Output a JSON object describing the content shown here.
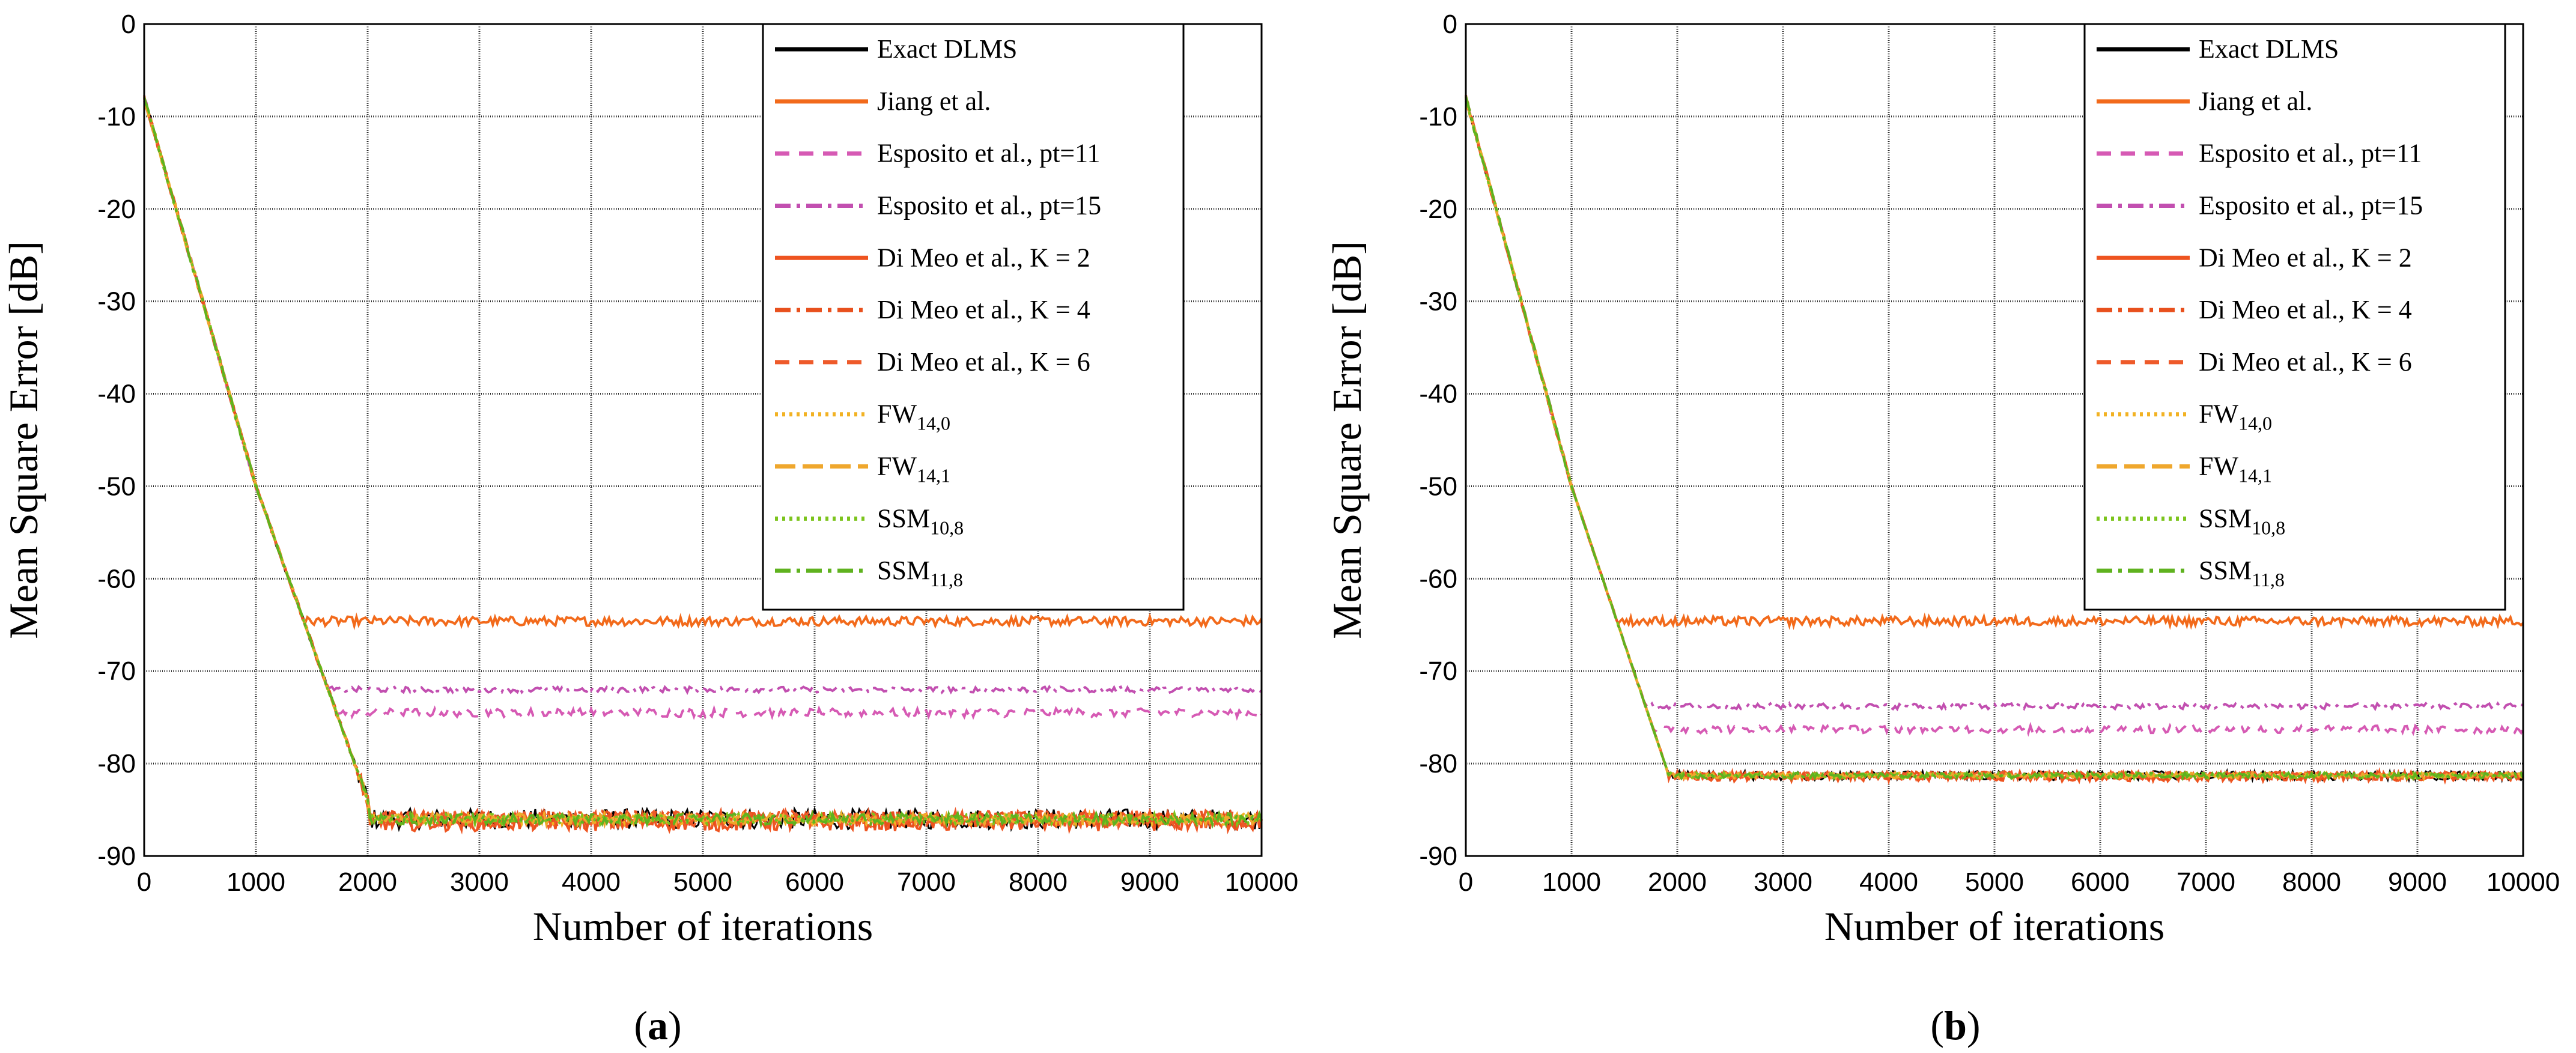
{
  "colors": {
    "exact": "#000000",
    "jiang": "#f26a1b",
    "esposito11": "#d65ab4",
    "esposito15": "#c24fb0",
    "dimeo2": "#ee5420",
    "dimeo4": "#e8501d",
    "dimeo6": "#ee5a2a",
    "fw140": "#f2b223",
    "fw141": "#efa72d",
    "ssm108": "#7cc41d",
    "ssm118": "#5fb21f"
  },
  "chart_data": [
    {
      "type": "line",
      "panel_label": "a",
      "title": "",
      "xlabel": "Number of iterations",
      "ylabel": "Mean Square Error [dB]",
      "xlim": [
        0,
        10000
      ],
      "ylim": [
        -90,
        0
      ],
      "x_ticks": [
        "0",
        "1000",
        "2000",
        "3000",
        "4000",
        "5000",
        "6000",
        "7000",
        "8000",
        "9000",
        "10000"
      ],
      "y_ticks": [
        "0",
        "-10",
        "-20",
        "-30",
        "-40",
        "-50",
        "-60",
        "-70",
        "-80",
        "-90"
      ],
      "grid": true,
      "legend_position": "top-right",
      "series": [
        {
          "key": "exact",
          "name": "Exact DLMS",
          "sub": "",
          "style": "solid",
          "floor": -86.0,
          "knee": 2000,
          "noise": 1.1
        },
        {
          "key": "jiang",
          "name": "Jiang et al.",
          "sub": "",
          "style": "solid",
          "floor": -64.6,
          "knee": 1500,
          "noise": 0.5
        },
        {
          "key": "esposito11",
          "name": "Esposito et al., pt=11",
          "sub": "",
          "style": "dashed",
          "floor": -74.5,
          "knee": 1850,
          "noise": 0.45
        },
        {
          "key": "esposito15",
          "name": "Esposito et al., pt=15",
          "sub": "",
          "style": "dashdot",
          "floor": -72.0,
          "knee": 1700,
          "noise": 0.3
        },
        {
          "key": "dimeo2",
          "name": "Di Meo et al., K = 2",
          "sub": "",
          "style": "solid",
          "floor": -86.3,
          "knee": 2000,
          "noise": 1.0
        },
        {
          "key": "dimeo4",
          "name": "Di Meo et al., K = 4",
          "sub": "",
          "style": "dashdot",
          "floor": -86.0,
          "knee": 2000,
          "noise": 0.9
        },
        {
          "key": "dimeo6",
          "name": "Di Meo et al., K = 6",
          "sub": "",
          "style": "dashed",
          "floor": -86.0,
          "knee": 2000,
          "noise": 0.9
        },
        {
          "key": "fw140",
          "name": "FW",
          "sub": "14,0",
          "style": "dotted",
          "floor": -86.0,
          "knee": 2000,
          "noise": 0.6
        },
        {
          "key": "fw141",
          "name": "FW",
          "sub": "14,1",
          "style": "longdash",
          "floor": -86.0,
          "knee": 2000,
          "noise": 0.6
        },
        {
          "key": "ssm108",
          "name": "SSM",
          "sub": "10,8",
          "style": "dotted",
          "floor": -86.0,
          "knee": 2000,
          "noise": 0.6
        },
        {
          "key": "ssm118",
          "name": "SSM",
          "sub": "11,8",
          "style": "dashdot",
          "floor": -86.0,
          "knee": 2000,
          "noise": 0.6
        }
      ]
    },
    {
      "type": "line",
      "panel_label": "b",
      "title": "",
      "xlabel": "Number of iterations",
      "ylabel": "Mean Square Error [dB]",
      "xlim": [
        0,
        10000
      ],
      "ylim": [
        -90,
        0
      ],
      "x_ticks": [
        "0",
        "1000",
        "2000",
        "3000",
        "4000",
        "5000",
        "6000",
        "7000",
        "8000",
        "9000",
        "10000"
      ],
      "y_ticks": [
        "0",
        "-10",
        "-20",
        "-30",
        "-40",
        "-50",
        "-60",
        "-70",
        "-80",
        "-90"
      ],
      "grid": true,
      "legend_position": "top-right",
      "series": [
        {
          "key": "exact",
          "name": "Exact DLMS",
          "sub": "",
          "style": "solid",
          "floor": -81.3,
          "knee": 2000,
          "noise": 0.5
        },
        {
          "key": "jiang",
          "name": "Jiang et al.",
          "sub": "",
          "style": "solid",
          "floor": -64.6,
          "knee": 1500,
          "noise": 0.5
        },
        {
          "key": "esposito11",
          "name": "Esposito et al., pt=11",
          "sub": "",
          "style": "dashed",
          "floor": -76.3,
          "knee": 1850,
          "noise": 0.4
        },
        {
          "key": "esposito15",
          "name": "Esposito et al., pt=15",
          "sub": "",
          "style": "dashdot",
          "floor": -73.8,
          "knee": 1700,
          "noise": 0.3
        },
        {
          "key": "dimeo2",
          "name": "Di Meo et al., K = 2",
          "sub": "",
          "style": "solid",
          "floor": -81.4,
          "knee": 2000,
          "noise": 0.5
        },
        {
          "key": "dimeo4",
          "name": "Di Meo et al., K = 4",
          "sub": "",
          "style": "dashdot",
          "floor": -81.3,
          "knee": 2000,
          "noise": 0.4
        },
        {
          "key": "dimeo6",
          "name": "Di Meo et al., K = 6",
          "sub": "",
          "style": "dashed",
          "floor": -81.3,
          "knee": 2000,
          "noise": 0.4
        },
        {
          "key": "fw140",
          "name": "FW",
          "sub": "14,0",
          "style": "dotted",
          "floor": -81.3,
          "knee": 2000,
          "noise": 0.3
        },
        {
          "key": "fw141",
          "name": "FW",
          "sub": "14,1",
          "style": "longdash",
          "floor": -81.3,
          "knee": 2000,
          "noise": 0.3
        },
        {
          "key": "ssm108",
          "name": "SSM",
          "sub": "10,8",
          "style": "dotted",
          "floor": -81.3,
          "knee": 2000,
          "noise": 0.3
        },
        {
          "key": "ssm118",
          "name": "SSM",
          "sub": "11,8",
          "style": "dashdot",
          "floor": -81.3,
          "knee": 2000,
          "noise": 0.3
        }
      ]
    }
  ],
  "captions": {
    "a": "a",
    "b": "b"
  }
}
